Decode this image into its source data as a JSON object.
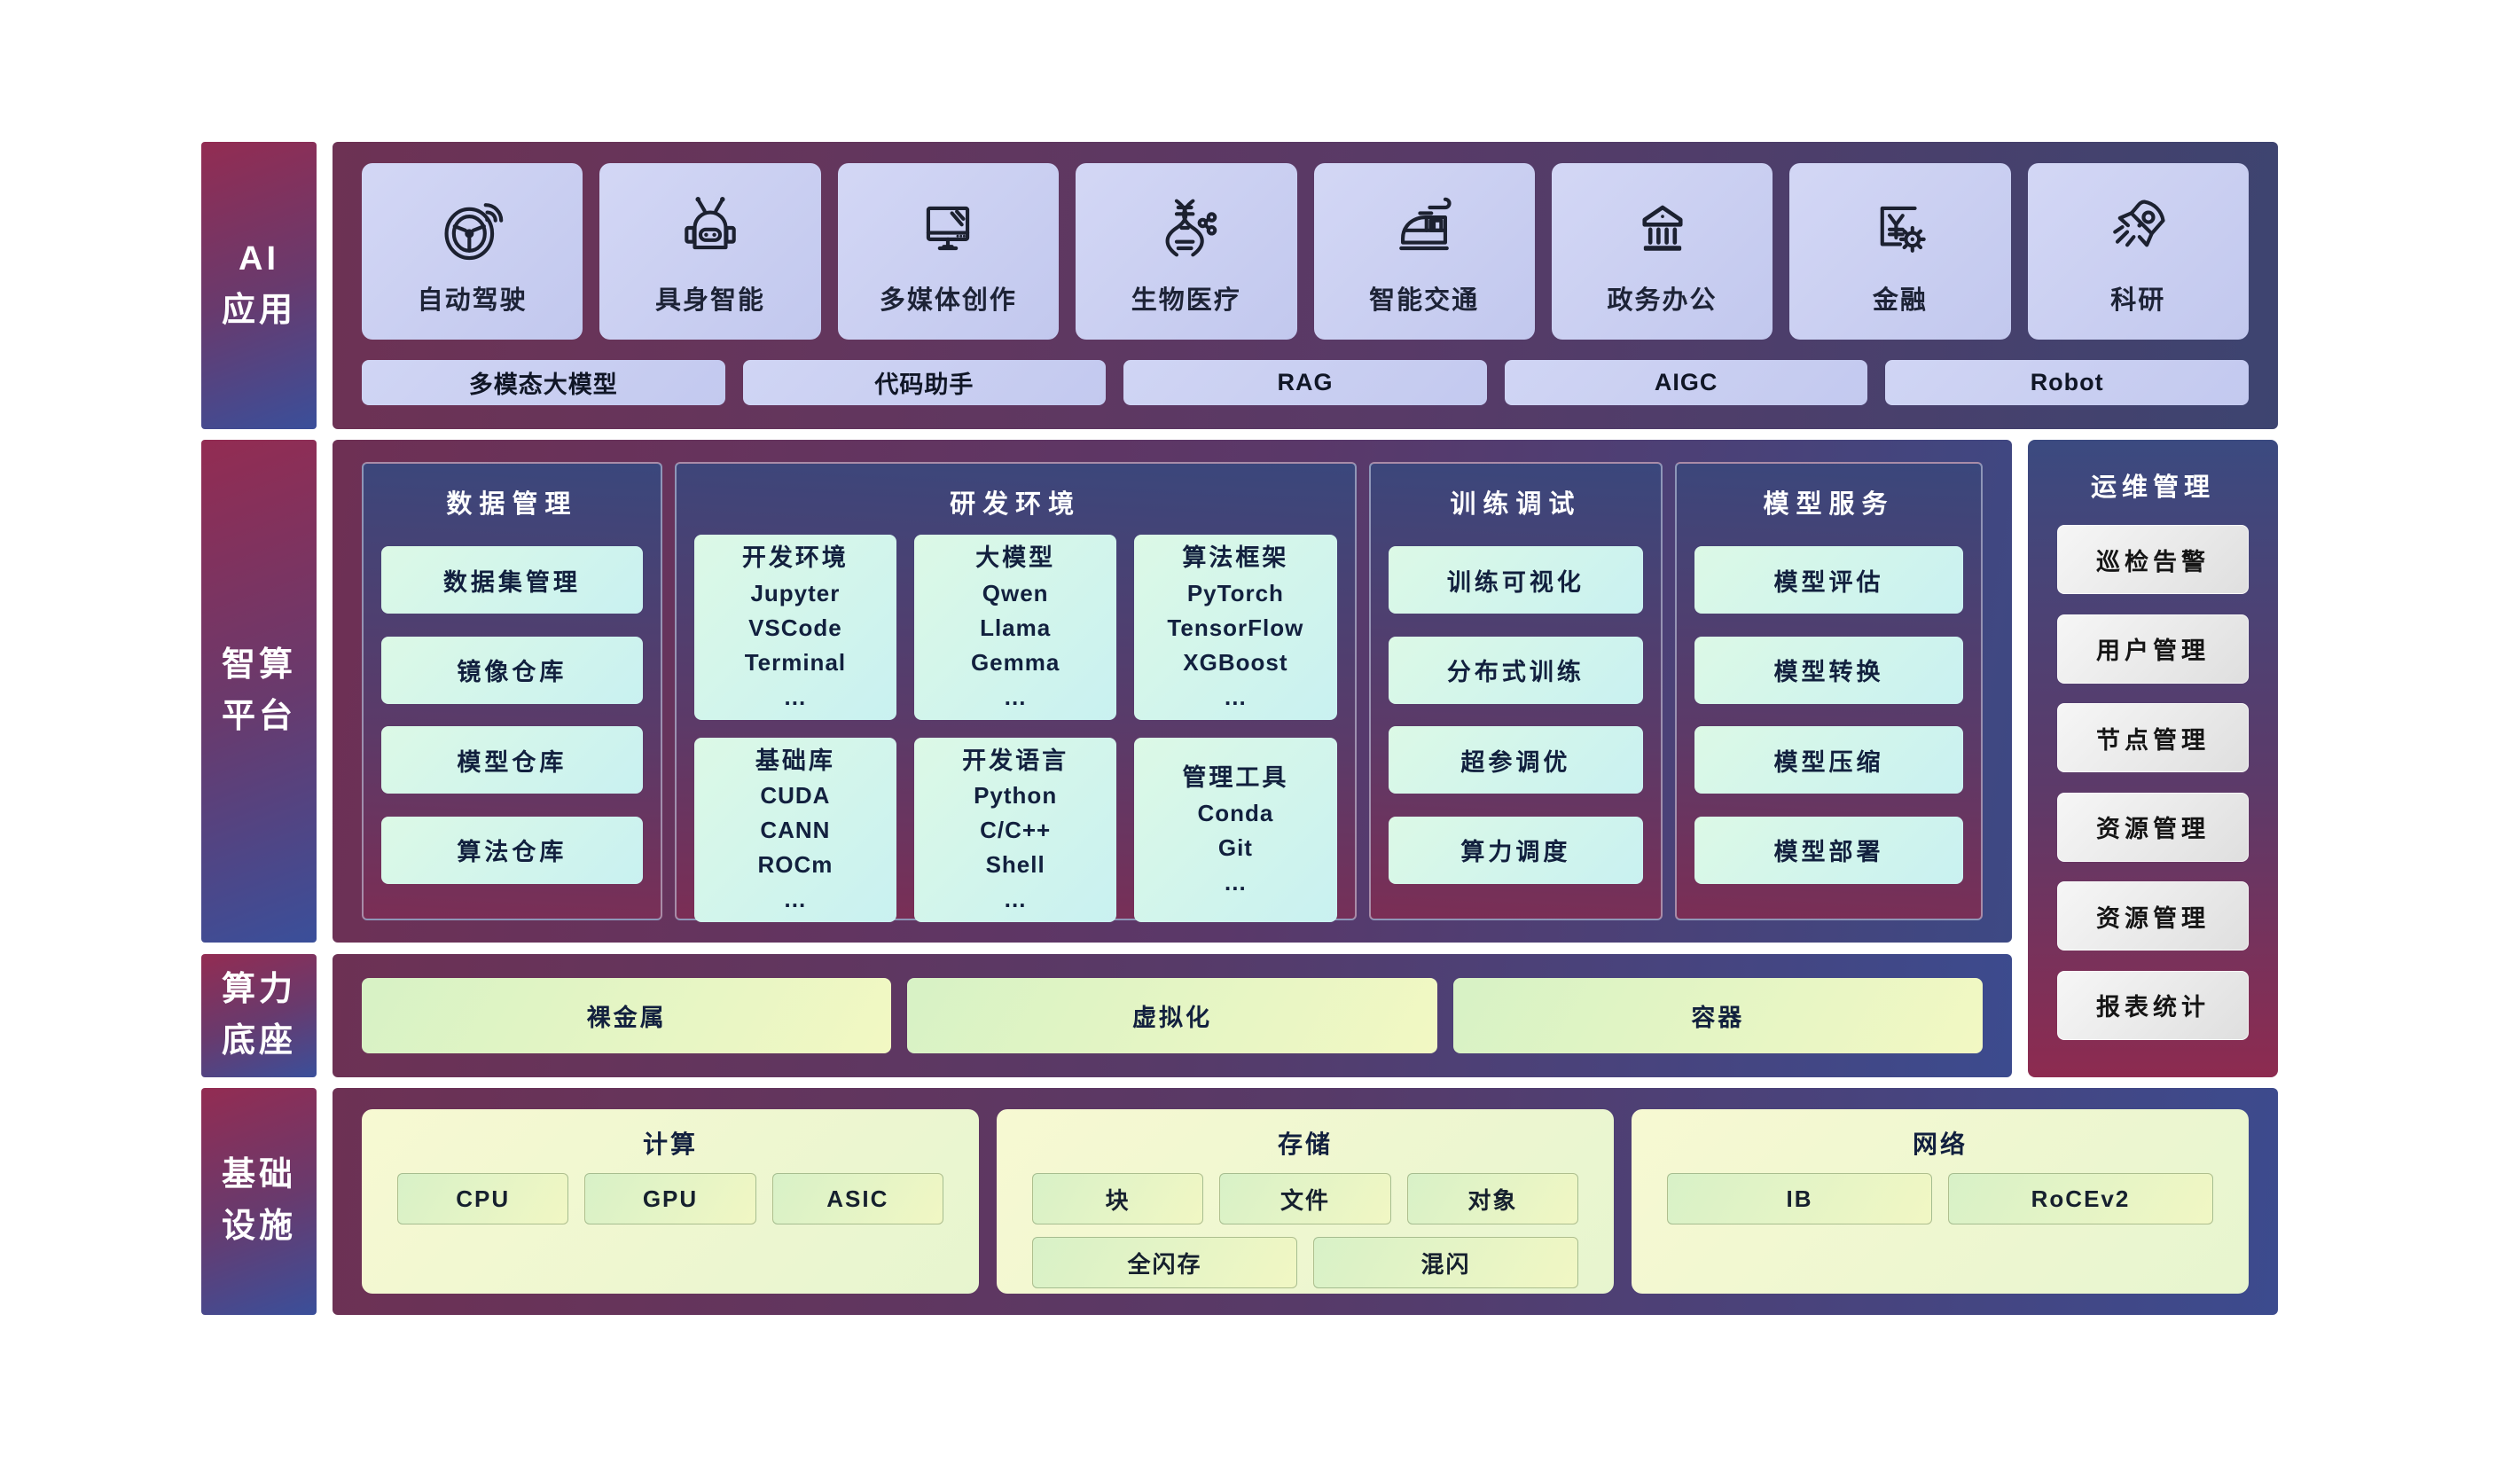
{
  "colors": {
    "label_gradient_top": "#932c52",
    "label_gradient_bottom": "#3a4f9a",
    "panel_maroon": "#6d3154",
    "panel_navy": "#3c4b8e",
    "column_navy_top": "#3a477c",
    "column_maroon_bottom": "#7b2e55",
    "lavender_card": "#c9cef1",
    "mint_cell": "#d4f5ec",
    "gray_cell": "#ebebeb",
    "yellow_green_cell": "#e4f5c4",
    "infra_block": "#f2f7d1"
  },
  "app_row": {
    "label_lines": [
      "AI",
      "应用"
    ],
    "items": [
      {
        "label": "自动驾驶",
        "icon": "steering-wheel-icon"
      },
      {
        "label": "具身智能",
        "icon": "robot-icon"
      },
      {
        "label": "多媒体创作",
        "icon": "monitor-icon"
      },
      {
        "label": "生物医疗",
        "icon": "dna-icon"
      },
      {
        "label": "智能交通",
        "icon": "train-icon"
      },
      {
        "label": "政务办公",
        "icon": "government-building-icon"
      },
      {
        "label": "金融",
        "icon": "yuan-gear-icon"
      },
      {
        "label": "科研",
        "icon": "rocket-icon"
      }
    ],
    "chips": [
      "多模态大模型",
      "代码助手",
      "RAG",
      "AIGC",
      "Robot"
    ]
  },
  "platform": {
    "label_lines": [
      "智算",
      "平台"
    ],
    "columns": [
      {
        "title": "数据管理",
        "cells": [
          "数据集管理",
          "镜像仓库",
          "模型仓库",
          "算法仓库"
        ]
      },
      {
        "title": "研发环境",
        "cells": [
          [
            "开发环境",
            "Jupyter",
            "VSCode",
            "Terminal",
            "…"
          ],
          [
            "大模型",
            "Qwen",
            "Llama",
            "Gemma",
            "…"
          ],
          [
            "算法框架",
            "PyTorch",
            "TensorFlow",
            "XGBoost",
            "…"
          ],
          [
            "基础库",
            "CUDA",
            "CANN",
            "ROCm",
            "…"
          ],
          [
            "开发语言",
            "Python",
            "C/C++",
            "Shell",
            "…"
          ],
          [
            "管理工具",
            "Conda",
            "Git",
            "…"
          ]
        ]
      },
      {
        "title": "训练调试",
        "cells": [
          "训练可视化",
          "分布式训练",
          "超参调优",
          "算力调度"
        ]
      },
      {
        "title": "模型服务",
        "cells": [
          "模型评估",
          "模型转换",
          "模型压缩",
          "模型部署"
        ]
      }
    ]
  },
  "ops": {
    "title": "运维管理",
    "cells": [
      "巡检告警",
      "用户管理",
      "节点管理",
      "资源管理",
      "资源管理",
      "报表统计"
    ]
  },
  "compute_base": {
    "label_lines": [
      "算力",
      "底座"
    ],
    "cells": [
      "裸金属",
      "虚拟化",
      "容器"
    ]
  },
  "infrastructure": {
    "label_lines": [
      "基础",
      "设施"
    ],
    "blocks": [
      {
        "title": "计算",
        "rows": [
          [
            "CPU",
            "GPU",
            "ASIC"
          ]
        ]
      },
      {
        "title": "存储",
        "rows": [
          [
            "块",
            "文件",
            "对象"
          ],
          [
            "全闪存",
            "混闪"
          ]
        ]
      },
      {
        "title": "网络",
        "rows": [
          [
            "IB",
            "RoCEv2"
          ]
        ]
      }
    ]
  }
}
